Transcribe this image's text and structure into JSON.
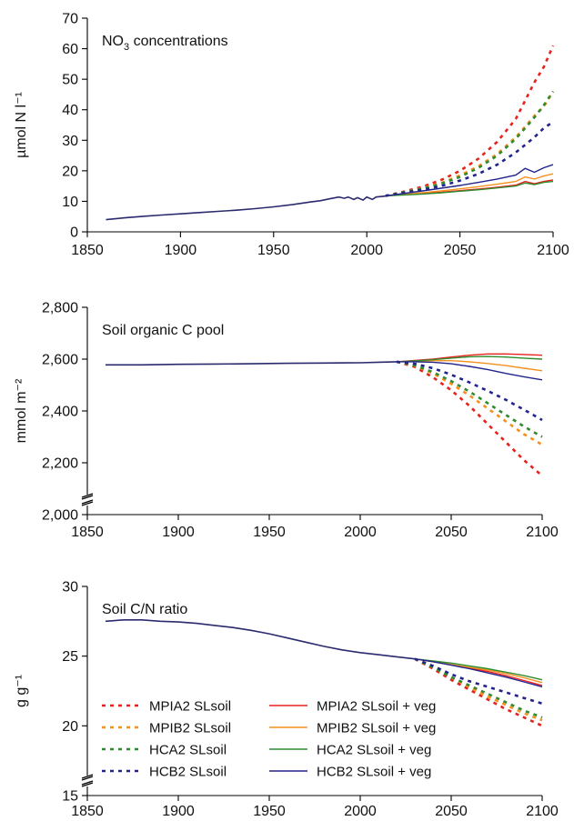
{
  "chart_data": [
    {
      "type": "line",
      "title": "NO3 concentrations",
      "xlabel": "",
      "ylabel": "µmol N l⁻¹",
      "xlim": [
        1850,
        2100
      ],
      "ylim": [
        0,
        70
      ],
      "x_ticks": [
        "1850",
        "1900",
        "1950",
        "2000",
        "2050",
        "2100"
      ],
      "y_ticks": [
        "0",
        "10",
        "20",
        "30",
        "40",
        "50",
        "60",
        "70"
      ],
      "axis_break": false,
      "historical": {
        "x": [
          1860,
          1870,
          1880,
          1890,
          1900,
          1910,
          1920,
          1930,
          1940,
          1950,
          1960,
          1970,
          1975,
          1980,
          1985,
          1988,
          1990,
          1993,
          1995,
          1998,
          2000,
          2003,
          2005,
          2010
        ],
        "values": [
          4.0,
          4.6,
          5.1,
          5.5,
          5.9,
          6.3,
          6.7,
          7.1,
          7.6,
          8.2,
          8.9,
          9.8,
          10.2,
          10.8,
          11.4,
          11.0,
          11.4,
          10.6,
          11.2,
          10.4,
          11.4,
          10.6,
          11.4,
          11.7
        ]
      },
      "series": [
        {
          "name": "MPIA2 SLsoil",
          "x": [
            2010,
            2020,
            2030,
            2040,
            2050,
            2060,
            2070,
            2080,
            2085,
            2090,
            2095,
            2100
          ],
          "values": [
            11.8,
            13.2,
            14.8,
            17.0,
            20.0,
            24.0,
            29.5,
            37.0,
            43.0,
            49.0,
            54.0,
            61.0
          ]
        },
        {
          "name": "MPIB2 SLsoil",
          "x": [
            2010,
            2020,
            2030,
            2040,
            2050,
            2060,
            2070,
            2080,
            2085,
            2090,
            2095,
            2100
          ],
          "values": [
            11.8,
            13.0,
            14.3,
            16.0,
            18.5,
            21.5,
            25.5,
            31.0,
            34.5,
            38.0,
            41.0,
            46.0
          ]
        },
        {
          "name": "HCA2 SLsoil",
          "x": [
            2010,
            2020,
            2030,
            2040,
            2050,
            2060,
            2070,
            2080,
            2085,
            2090,
            2095,
            2100
          ],
          "values": [
            11.8,
            13.0,
            14.2,
            15.8,
            18.0,
            21.0,
            25.0,
            30.5,
            34.0,
            37.5,
            41.5,
            46.0
          ]
        },
        {
          "name": "HCB2 SLsoil",
          "x": [
            2010,
            2020,
            2030,
            2040,
            2050,
            2060,
            2070,
            2080,
            2085,
            2090,
            2095,
            2100
          ],
          "values": [
            11.8,
            12.8,
            13.8,
            15.0,
            16.8,
            19.0,
            22.0,
            26.0,
            28.5,
            31.0,
            34.0,
            36.0
          ]
        },
        {
          "name": "MPIA2 SLsoil + veg",
          "x": [
            2010,
            2020,
            2030,
            2040,
            2050,
            2060,
            2070,
            2080,
            2085,
            2090,
            2095,
            2100
          ],
          "values": [
            11.8,
            12.2,
            12.6,
            13.0,
            13.5,
            14.0,
            14.6,
            15.3,
            16.5,
            15.8,
            16.5,
            17.0
          ]
        },
        {
          "name": "MPIB2 SLsoil + veg",
          "x": [
            2010,
            2020,
            2030,
            2040,
            2050,
            2060,
            2070,
            2080,
            2085,
            2090,
            2095,
            2100
          ],
          "values": [
            11.8,
            12.3,
            12.8,
            13.4,
            14.1,
            14.8,
            15.6,
            16.5,
            18.0,
            17.3,
            18.3,
            19.0
          ]
        },
        {
          "name": "HCA2 SLsoil + veg",
          "x": [
            2010,
            2020,
            2030,
            2040,
            2050,
            2060,
            2070,
            2080,
            2085,
            2090,
            2095,
            2100
          ],
          "values": [
            11.8,
            12.1,
            12.4,
            12.8,
            13.3,
            13.8,
            14.4,
            15.0,
            16.0,
            15.5,
            16.2,
            16.5
          ]
        },
        {
          "name": "HCB2 SLsoil + veg",
          "x": [
            2010,
            2020,
            2030,
            2040,
            2050,
            2060,
            2070,
            2080,
            2085,
            2090,
            2095,
            2100
          ],
          "values": [
            11.8,
            12.6,
            13.4,
            14.3,
            15.2,
            16.2,
            17.3,
            18.6,
            20.8,
            19.5,
            21.0,
            22.0
          ]
        }
      ]
    },
    {
      "type": "line",
      "title": "Soil organic C pool",
      "xlabel": "",
      "ylabel": "mmol m⁻²",
      "xlim": [
        1850,
        2100
      ],
      "ylim": [
        2000,
        2800
      ],
      "x_ticks": [
        "1850",
        "1900",
        "1950",
        "2000",
        "2050",
        "2100"
      ],
      "y_ticks": [
        "2,000",
        "2,200",
        "2,400",
        "2,600",
        "2,800"
      ],
      "axis_break": true,
      "historical": {
        "x": [
          1860,
          1880,
          1900,
          1920,
          1940,
          1960,
          1980,
          2000,
          2010,
          2020
        ],
        "values": [
          2578,
          2578,
          2580,
          2581,
          2582,
          2584,
          2585,
          2586,
          2588,
          2590
        ]
      },
      "series": [
        {
          "name": "MPIA2 SLsoil",
          "x": [
            2020,
            2030,
            2040,
            2050,
            2060,
            2070,
            2080,
            2090,
            2100
          ],
          "values": [
            2590,
            2570,
            2530,
            2480,
            2420,
            2350,
            2280,
            2210,
            2150
          ]
        },
        {
          "name": "MPIB2 SLsoil",
          "x": [
            2020,
            2030,
            2040,
            2050,
            2060,
            2070,
            2080,
            2090,
            2100
          ],
          "values": [
            2590,
            2575,
            2545,
            2505,
            2460,
            2410,
            2360,
            2310,
            2270
          ]
        },
        {
          "name": "HCA2 SLsoil",
          "x": [
            2020,
            2030,
            2040,
            2050,
            2060,
            2070,
            2080,
            2090,
            2100
          ],
          "values": [
            2590,
            2576,
            2550,
            2515,
            2475,
            2430,
            2385,
            2340,
            2300
          ]
        },
        {
          "name": "HCB2 SLsoil",
          "x": [
            2020,
            2030,
            2040,
            2050,
            2060,
            2070,
            2080,
            2090,
            2100
          ],
          "values": [
            2590,
            2582,
            2565,
            2540,
            2510,
            2478,
            2443,
            2405,
            2365
          ]
        },
        {
          "name": "MPIA2 SLsoil + veg",
          "x": [
            2020,
            2030,
            2040,
            2050,
            2060,
            2070,
            2080,
            2090,
            2100
          ],
          "values": [
            2590,
            2595,
            2600,
            2608,
            2615,
            2620,
            2620,
            2618,
            2615
          ]
        },
        {
          "name": "MPIB2 SLsoil + veg",
          "x": [
            2020,
            2030,
            2040,
            2050,
            2060,
            2070,
            2080,
            2090,
            2100
          ],
          "values": [
            2590,
            2592,
            2594,
            2594,
            2590,
            2583,
            2575,
            2565,
            2555
          ]
        },
        {
          "name": "HCA2 SLsoil + veg",
          "x": [
            2020,
            2030,
            2040,
            2050,
            2060,
            2070,
            2080,
            2090,
            2100
          ],
          "values": [
            2590,
            2593,
            2598,
            2604,
            2609,
            2610,
            2608,
            2604,
            2600
          ]
        },
        {
          "name": "HCB2 SLsoil + veg",
          "x": [
            2020,
            2030,
            2040,
            2050,
            2060,
            2070,
            2080,
            2090,
            2100
          ],
          "values": [
            2590,
            2590,
            2588,
            2582,
            2572,
            2560,
            2545,
            2532,
            2520
          ]
        }
      ]
    },
    {
      "type": "line",
      "title": "Soil C/N ratio",
      "xlabel": "",
      "ylabel": "g g⁻¹",
      "xlim": [
        1850,
        2100
      ],
      "ylim": [
        15,
        30
      ],
      "x_ticks": [
        "1850",
        "1900",
        "1950",
        "2000",
        "2050",
        "2100"
      ],
      "y_ticks": [
        "15",
        "20",
        "25",
        "30"
      ],
      "axis_break": true,
      "historical": {
        "x": [
          1860,
          1870,
          1880,
          1890,
          1900,
          1910,
          1920,
          1930,
          1940,
          1950,
          1960,
          1970,
          1980,
          1990,
          2000,
          2010,
          2020,
          2030
        ],
        "values": [
          27.5,
          27.6,
          27.6,
          27.5,
          27.45,
          27.35,
          27.2,
          27.05,
          26.85,
          26.6,
          26.3,
          26.0,
          25.7,
          25.45,
          25.25,
          25.1,
          24.95,
          24.8
        ]
      },
      "series": [
        {
          "name": "MPIA2 SLsoil",
          "x": [
            2030,
            2040,
            2050,
            2060,
            2070,
            2080,
            2090,
            2100
          ],
          "values": [
            24.8,
            24.1,
            23.3,
            22.6,
            21.9,
            21.2,
            20.6,
            20.0
          ]
        },
        {
          "name": "MPIB2 SLsoil",
          "x": [
            2030,
            2040,
            2050,
            2060,
            2070,
            2080,
            2090,
            2100
          ],
          "values": [
            24.8,
            24.2,
            23.5,
            22.8,
            22.1,
            21.5,
            20.9,
            20.4
          ]
        },
        {
          "name": "HCA2 SLsoil",
          "x": [
            2030,
            2040,
            2050,
            2060,
            2070,
            2080,
            2090,
            2100
          ],
          "values": [
            24.8,
            24.2,
            23.5,
            22.9,
            22.3,
            21.7,
            21.1,
            20.6
          ]
        },
        {
          "name": "HCB2 SLsoil",
          "x": [
            2030,
            2040,
            2050,
            2060,
            2070,
            2080,
            2090,
            2100
          ],
          "values": [
            24.8,
            24.3,
            23.7,
            23.2,
            22.8,
            22.4,
            22.0,
            21.6
          ]
        },
        {
          "name": "MPIA2 SLsoil + veg",
          "x": [
            2030,
            2040,
            2050,
            2060,
            2070,
            2080,
            2090,
            2100
          ],
          "values": [
            24.8,
            24.6,
            24.4,
            24.15,
            23.9,
            23.6,
            23.25,
            22.9
          ]
        },
        {
          "name": "MPIB2 SLsoil + veg",
          "x": [
            2030,
            2040,
            2050,
            2060,
            2070,
            2080,
            2090,
            2100
          ],
          "values": [
            24.8,
            24.6,
            24.4,
            24.2,
            24.0,
            23.75,
            23.45,
            23.1
          ]
        },
        {
          "name": "HCA2 SLsoil + veg",
          "x": [
            2030,
            2040,
            2050,
            2060,
            2070,
            2080,
            2090,
            2100
          ],
          "values": [
            24.8,
            24.65,
            24.5,
            24.3,
            24.1,
            23.85,
            23.6,
            23.3
          ]
        },
        {
          "name": "HCB2 SLsoil + veg",
          "x": [
            2030,
            2040,
            2050,
            2060,
            2070,
            2080,
            2090,
            2100
          ],
          "values": [
            24.8,
            24.6,
            24.35,
            24.1,
            23.8,
            23.5,
            23.15,
            22.8
          ]
        }
      ]
    }
  ],
  "legend": {
    "placement": "bottom-left of third panel, two columns",
    "items": [
      {
        "label": "MPIA2 SLsoil",
        "style": "dashed",
        "color": "#e8211c"
      },
      {
        "label": "MPIB2 SLsoil",
        "style": "dashed",
        "color": "#f5901e"
      },
      {
        "label": "HCA2 SLsoil",
        "style": "dashed",
        "color": "#2e8b2e"
      },
      {
        "label": "HCB2 SLsoil",
        "style": "dashed",
        "color": "#22238c"
      },
      {
        "label": "MPIA2 SLsoil + veg",
        "style": "solid",
        "color": "#e8211c"
      },
      {
        "label": "MPIB2 SLsoil + veg",
        "style": "solid",
        "color": "#f5901e"
      },
      {
        "label": "HCA2 SLsoil + veg",
        "style": "solid",
        "color": "#2e8b2e"
      },
      {
        "label": "HCB2 SLsoil + veg",
        "style": "solid",
        "color": "#22238c"
      }
    ]
  },
  "colors": {
    "historical": "#2a2a6e",
    "mpia2": "#e8211c",
    "mpib2": "#f5901e",
    "hca2": "#2e8b2e",
    "hcb2": "#22238c"
  }
}
